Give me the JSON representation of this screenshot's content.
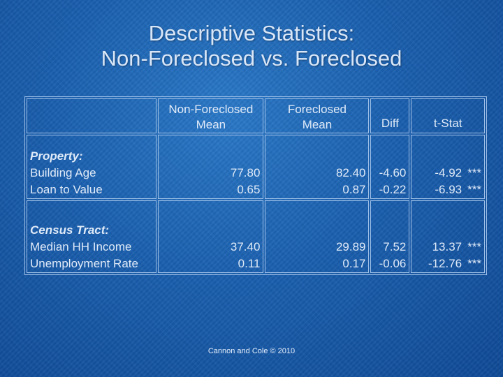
{
  "title": {
    "line1": "Descriptive Statistics:",
    "line2": "Non-Foreclosed vs. Foreclosed"
  },
  "table": {
    "headers": {
      "non_foreclosed_line1": "Non-Foreclosed",
      "non_foreclosed_line2": "Mean",
      "foreclosed_line1": "Foreclosed",
      "foreclosed_line2": "Mean",
      "diff": "Diff",
      "tstat": "t-Stat"
    },
    "sections": [
      {
        "heading": "Property:",
        "rows": [
          {
            "label": "Building Age",
            "non_foreclosed": "77.80",
            "foreclosed": "82.40",
            "diff": "-4.60",
            "tstat": "-4.92",
            "sig": "***"
          },
          {
            "label": "Loan to Value",
            "non_foreclosed": "0.65",
            "foreclosed": "0.87",
            "diff": "-0.22",
            "tstat": "-6.93",
            "sig": "***"
          }
        ]
      },
      {
        "heading": "Census Tract:",
        "rows": [
          {
            "label": "Median HH Income",
            "non_foreclosed": "37.40",
            "foreclosed": "29.89",
            "diff": "7.52",
            "tstat": "13.37",
            "sig": "***"
          },
          {
            "label": "Unemployment Rate",
            "non_foreclosed": "0.11",
            "foreclosed": "0.17",
            "diff": "-0.06",
            "tstat": "-12.76",
            "sig": "***"
          }
        ]
      }
    ]
  },
  "footer": "Cannon and Cole © 2010"
}
